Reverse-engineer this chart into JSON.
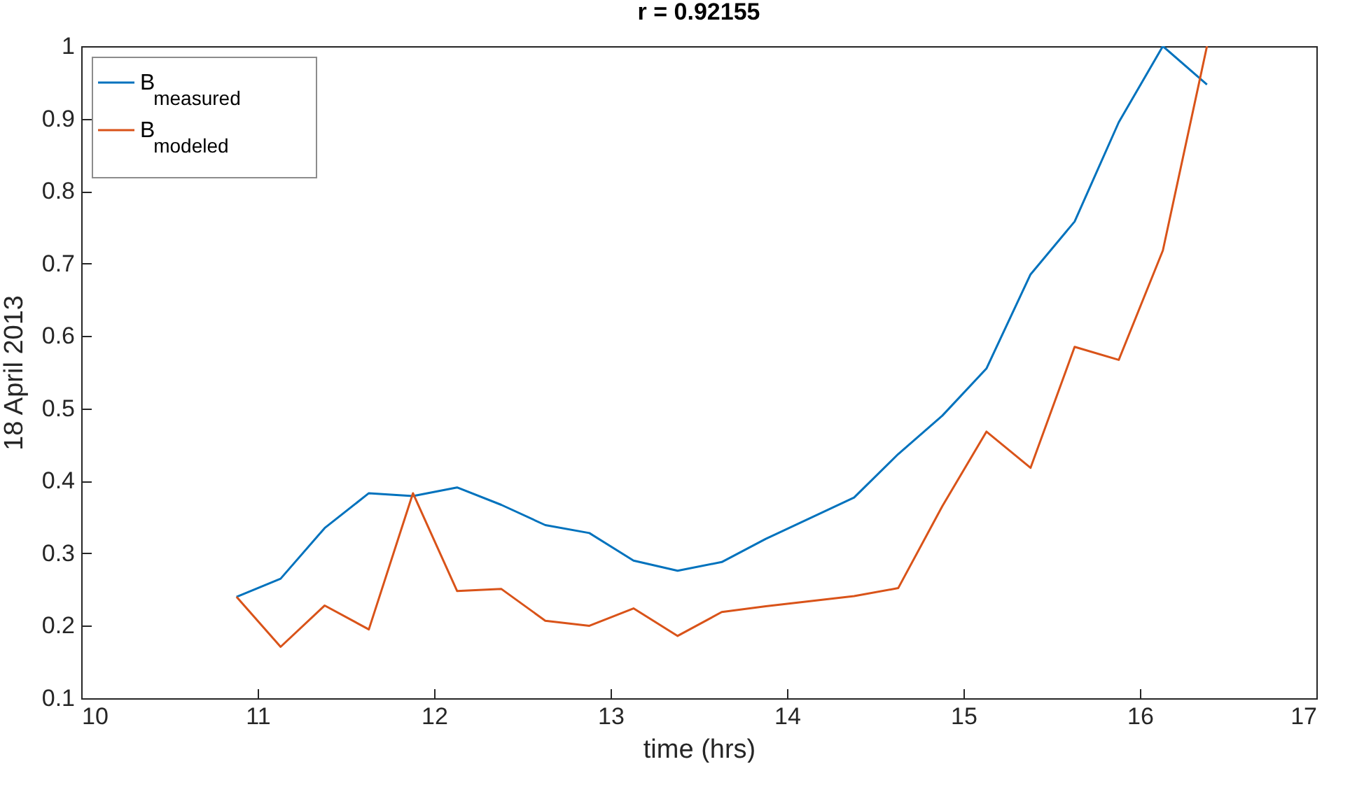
{
  "chart_data": {
    "type": "line",
    "title": "r = 0.92155",
    "xlabel": "time (hrs)",
    "ylabel": "18 April 2013",
    "x": [
      10.88,
      11.13,
      11.38,
      11.63,
      11.88,
      12.13,
      12.38,
      12.63,
      12.88,
      13.13,
      13.38,
      13.63,
      13.88,
      14.38,
      14.63,
      14.88,
      15.13,
      15.38,
      15.63,
      15.88,
      16.13,
      16.38
    ],
    "series": [
      {
        "name": "B$_{measured}$",
        "color": "#0072bd",
        "values": [
          0.24,
          0.265,
          0.335,
          0.383,
          0.379,
          0.391,
          0.367,
          0.339,
          0.328,
          0.29,
          0.276,
          0.288,
          0.32,
          0.377,
          0.437,
          0.49,
          0.555,
          0.685,
          0.758,
          0.895,
          1.0,
          0.947
        ]
      },
      {
        "name": "B$_{modeled}$",
        "color": "#d95319",
        "values": [
          0.24,
          0.171,
          0.228,
          0.195,
          0.383,
          0.248,
          0.251,
          0.207,
          0.2,
          0.224,
          0.186,
          0.219,
          0.227,
          0.241,
          0.252,
          0.365,
          0.468,
          0.418,
          0.585,
          0.567,
          0.718,
          1.0
        ]
      }
    ],
    "xlim": [
      10,
      17
    ],
    "xticks": [
      10,
      11,
      12,
      13,
      14,
      15,
      16,
      17
    ],
    "ylim": [
      0.1,
      1
    ],
    "yticks": [
      0.1,
      0.2,
      0.3,
      0.4,
      0.5,
      0.6,
      0.7,
      0.8,
      0.9,
      1
    ],
    "legend": "top left",
    "grid": false
  }
}
